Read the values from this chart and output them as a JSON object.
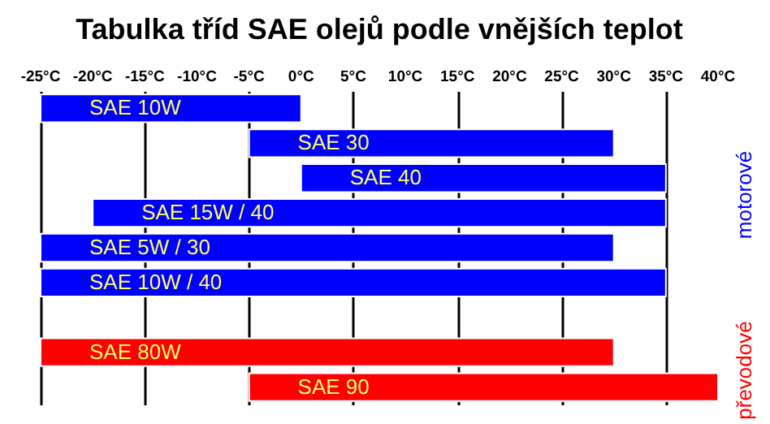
{
  "chart_data": {
    "type": "bar",
    "orientation": "horizontal",
    "title": "Tabulka tříd SAE olejů podle vnějších teplot",
    "categories": [
      "SAE 10W",
      "SAE 30",
      "SAE 40",
      "SAE 15W / 40",
      "SAE 5W / 30",
      "SAE 10W / 40",
      null,
      "SAE 80W",
      "SAE 90"
    ],
    "series": [
      {
        "name": "motorové",
        "color": "#0000ff",
        "values": [
          25,
          35,
          35,
          55,
          55,
          60,
          null,
          null,
          null
        ],
        "base": [
          -25,
          -5,
          0,
          -20,
          -25,
          -25,
          null,
          null,
          null
        ]
      },
      {
        "name": "převodové",
        "color": "#ff0000",
        "values": [
          null,
          null,
          null,
          null,
          null,
          null,
          null,
          55,
          45
        ],
        "base": [
          null,
          null,
          null,
          null,
          null,
          null,
          null,
          -25,
          -5
        ]
      }
    ],
    "xlim": [
      -25,
      40
    ],
    "xticks": [
      {
        "value": -25,
        "label": "-25°C"
      },
      {
        "value": -20,
        "label": "-20°C"
      },
      {
        "value": -15,
        "label": "-15°C"
      },
      {
        "value": -10,
        "label": "-10°C"
      },
      {
        "value": -5,
        "label": "-5°C"
      },
      {
        "value": 0,
        "label": "0°C"
      },
      {
        "value": 5,
        "label": "5°C"
      },
      {
        "value": 10,
        "label": "10°C"
      },
      {
        "value": 15,
        "label": "15°C"
      },
      {
        "value": 20,
        "label": "20°C"
      },
      {
        "value": 25,
        "label": "25°C"
      },
      {
        "value": 30,
        "label": "30°C"
      },
      {
        "value": 35,
        "label": "35°C"
      },
      {
        "value": 40,
        "label": "40°C"
      }
    ],
    "grid": "x",
    "legend": "right"
  }
}
